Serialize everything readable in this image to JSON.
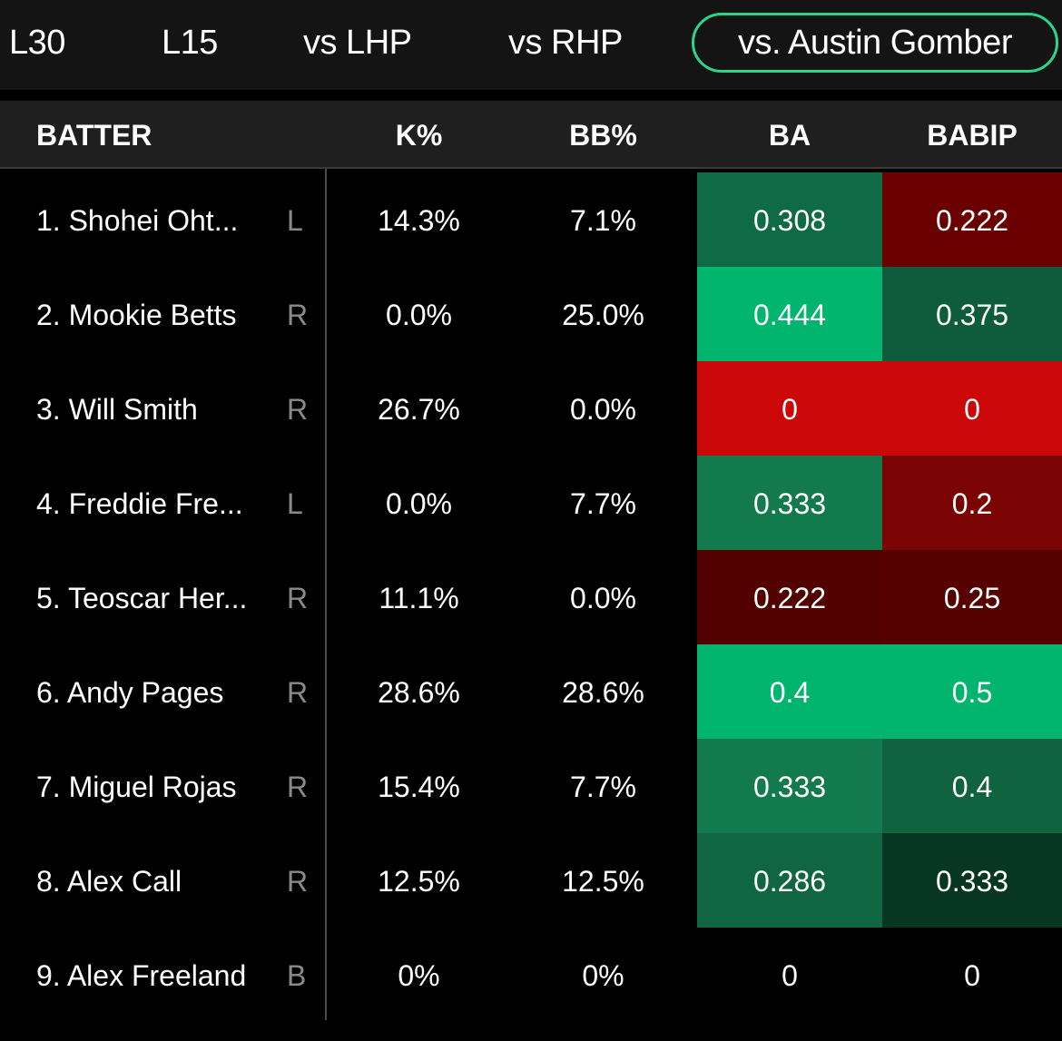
{
  "tabs": [
    {
      "label": "L30",
      "active": false
    },
    {
      "label": "L15",
      "active": false
    },
    {
      "label": "vs LHP",
      "active": false
    },
    {
      "label": "vs RHP",
      "active": false
    },
    {
      "label": "vs. Austin Gomber",
      "active": true
    }
  ],
  "table": {
    "columns": {
      "batter": "BATTER",
      "k_pct": "K%",
      "bb_pct": "BB%",
      "ba": "BA",
      "babip": "BABIP"
    },
    "rows": [
      {
        "name": "1. Shohei Oht...",
        "hand": "L",
        "k_pct": "14.3%",
        "bb_pct": "7.1%",
        "ba": "0.308",
        "babip": "0.222",
        "ba_color": "#0f6b45",
        "babip_color": "#6b0000"
      },
      {
        "name": "2. Mookie Betts",
        "hand": "R",
        "k_pct": "0.0%",
        "bb_pct": "25.0%",
        "ba": "0.444",
        "babip": "0.375",
        "ba_color": "#02b56f",
        "babip_color": "#0f5c3c"
      },
      {
        "name": "3. Will Smith",
        "hand": "R",
        "k_pct": "26.7%",
        "bb_pct": "0.0%",
        "ba": "0",
        "babip": "0",
        "ba_color": "#cc0707",
        "babip_color": "#cc0707"
      },
      {
        "name": "4. Freddie Fre...",
        "hand": "L",
        "k_pct": "0.0%",
        "bb_pct": "7.7%",
        "ba": "0.333",
        "babip": "0.2",
        "ba_color": "#137a4e",
        "babip_color": "#7a0303"
      },
      {
        "name": "5. Teoscar Her...",
        "hand": "R",
        "k_pct": "11.1%",
        "bb_pct": "0.0%",
        "ba": "0.222",
        "babip": "0.25",
        "ba_color": "#520000",
        "babip_color": "#560000"
      },
      {
        "name": "6. Andy Pages",
        "hand": "R",
        "k_pct": "28.6%",
        "bb_pct": "28.6%",
        "ba": "0.4",
        "babip": "0.5",
        "ba_color": "#02b56f",
        "babip_color": "#02b56f"
      },
      {
        "name": "7. Miguel Rojas",
        "hand": "R",
        "k_pct": "15.4%",
        "bb_pct": "7.7%",
        "ba": "0.333",
        "babip": "0.4",
        "ba_color": "#137a4e",
        "babip_color": "#10633f"
      },
      {
        "name": "8. Alex Call",
        "hand": "R",
        "k_pct": "12.5%",
        "bb_pct": "12.5%",
        "ba": "0.286",
        "babip": "0.333",
        "ba_color": "#0f6640",
        "babip_color": "#073622"
      },
      {
        "name": "9. Alex Freeland",
        "hand": "B",
        "k_pct": "0%",
        "bb_pct": "0%",
        "ba": "0",
        "babip": "0",
        "ba_color": "",
        "babip_color": ""
      }
    ]
  }
}
